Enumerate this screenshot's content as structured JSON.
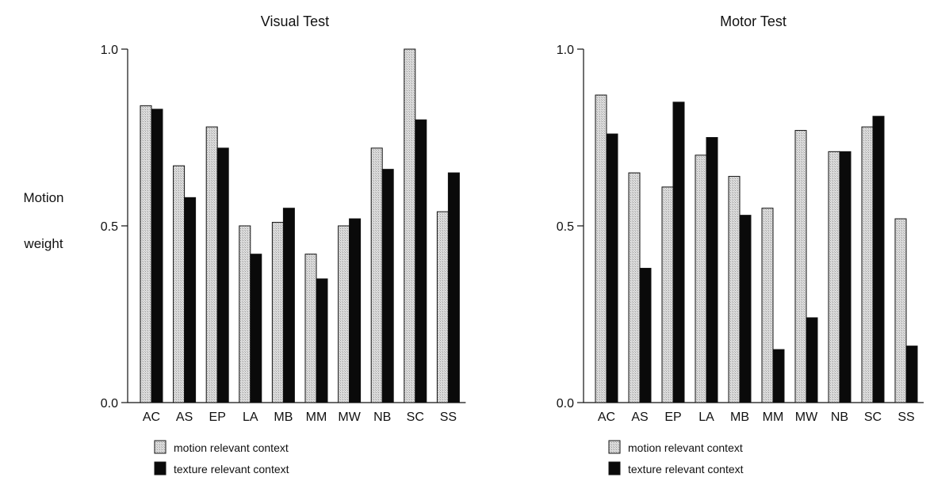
{
  "ylabel": {
    "line1": "Motion",
    "line2": "weight"
  },
  "chart_data": [
    {
      "type": "bar",
      "title": "Visual Test",
      "categories": [
        "AC",
        "AS",
        "EP",
        "LA",
        "MB",
        "MM",
        "MW",
        "NB",
        "SC",
        "SS"
      ],
      "yticks": [
        "0.0",
        "0.5",
        "1.0"
      ],
      "ylim": [
        0,
        1
      ],
      "series": [
        {
          "name": "motion relevant context",
          "color": "#d6d6d6",
          "values": [
            0.84,
            0.67,
            0.78,
            0.5,
            0.51,
            0.42,
            0.5,
            0.72,
            1.0,
            0.54
          ]
        },
        {
          "name": "texture relevant context",
          "color": "#0a0a0a",
          "values": [
            0.83,
            0.58,
            0.72,
            0.42,
            0.55,
            0.35,
            0.52,
            0.66,
            0.8,
            0.65
          ]
        }
      ]
    },
    {
      "type": "bar",
      "title": "Motor Test",
      "categories": [
        "AC",
        "AS",
        "EP",
        "LA",
        "MB",
        "MM",
        "MW",
        "NB",
        "SC",
        "SS"
      ],
      "yticks": [
        "0.0",
        "0.5",
        "1.0"
      ],
      "ylim": [
        0,
        1
      ],
      "series": [
        {
          "name": "motion relevant context",
          "color": "#d6d6d6",
          "values": [
            0.87,
            0.65,
            0.61,
            0.7,
            0.64,
            0.55,
            0.77,
            0.71,
            0.78,
            0.52
          ]
        },
        {
          "name": "texture relevant context",
          "color": "#0a0a0a",
          "values": [
            0.76,
            0.38,
            0.85,
            0.75,
            0.53,
            0.15,
            0.24,
            0.71,
            0.81,
            0.16
          ]
        }
      ]
    }
  ]
}
